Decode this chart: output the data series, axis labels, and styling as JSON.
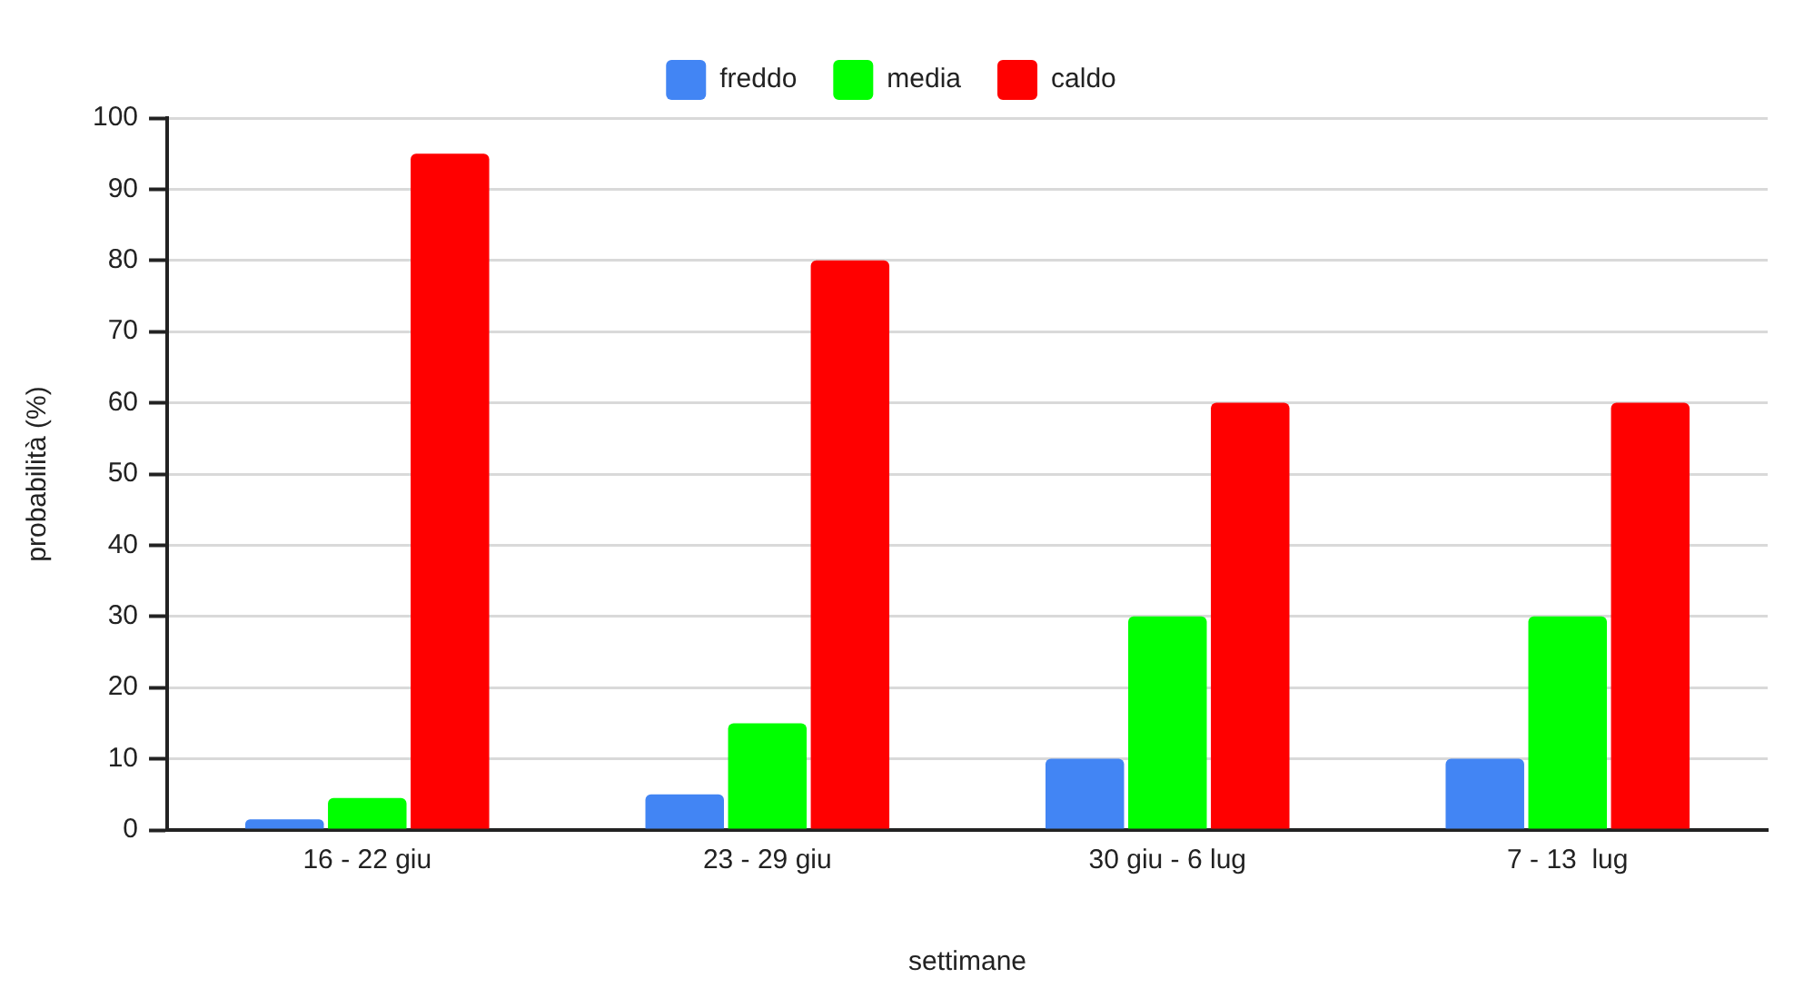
{
  "chart_data": {
    "type": "bar",
    "xlabel": "settimane",
    "ylabel": "probabilità (%)",
    "categories": [
      "16 - 22 giu",
      "23 - 29 giu",
      "30 giu - 6 lug",
      "7 - 13  lug"
    ],
    "series": [
      {
        "name": "freddo",
        "color": "#4285f4",
        "values": [
          1.5,
          5,
          10,
          10
        ]
      },
      {
        "name": "media",
        "color": "#00ff00",
        "values": [
          4.5,
          15,
          30,
          30
        ]
      },
      {
        "name": "caldo",
        "color": "#ff0000",
        "values": [
          95,
          80,
          60,
          60
        ]
      }
    ],
    "ylim": [
      0,
      100
    ],
    "yticks": [
      0,
      10,
      20,
      30,
      40,
      50,
      60,
      70,
      80,
      90,
      100
    ],
    "grid": "y",
    "legend": "top"
  }
}
